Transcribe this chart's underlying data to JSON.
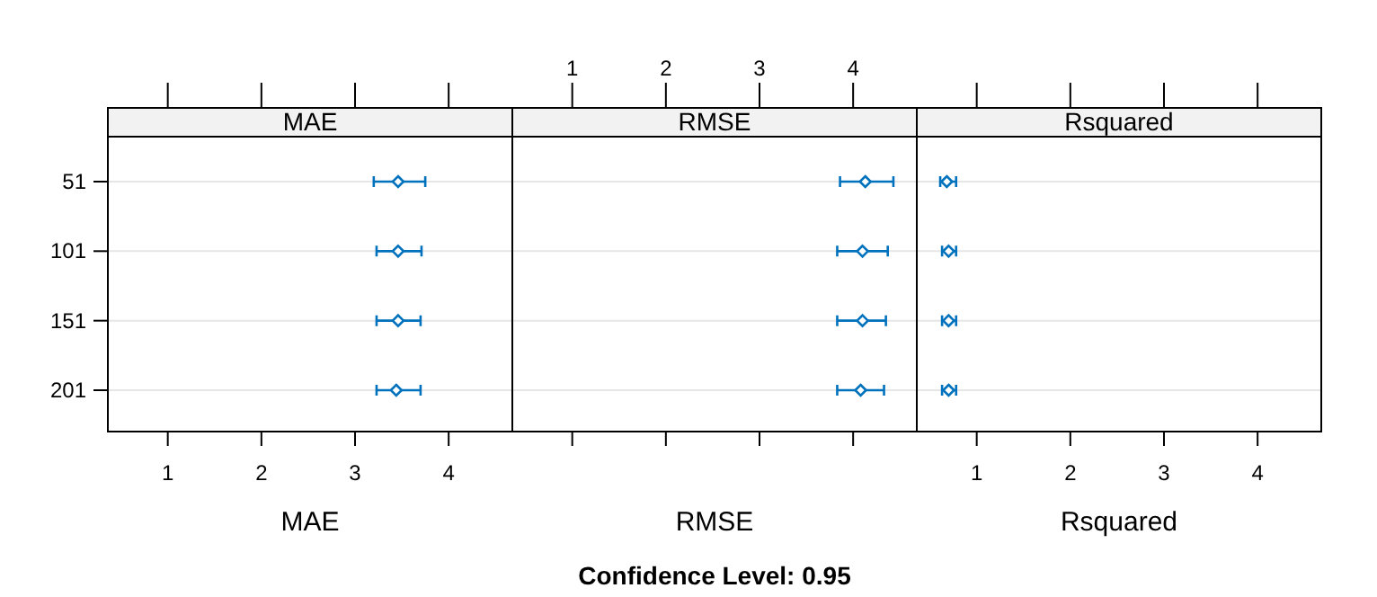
{
  "chart_data": [
    {
      "type": "scatter",
      "title": "MAE",
      "xlabel": "MAE",
      "orientation": "horizontal",
      "categories": [
        "51",
        "101",
        "151",
        "201"
      ],
      "xlim": [
        0.36,
        4.68
      ],
      "xticks": [
        1,
        2,
        3,
        4
      ],
      "grid": "y",
      "marker": "diamond",
      "series": [
        {
          "color": "#0072bd",
          "values": [
            3.46,
            3.46,
            3.46,
            3.44
          ],
          "errors": [
            [
              3.2,
              3.75
            ],
            [
              3.23,
              3.71
            ],
            [
              3.23,
              3.7
            ],
            [
              3.23,
              3.7
            ]
          ]
        }
      ]
    },
    {
      "type": "scatter",
      "title": "RMSE",
      "xlabel": "RMSE",
      "orientation": "horizontal",
      "categories": [
        "51",
        "101",
        "151",
        "201"
      ],
      "xlim": [
        0.36,
        4.68
      ],
      "xticks": [
        1,
        2,
        3,
        4
      ],
      "tick_labels": "x",
      "grid": "y",
      "marker": "diamond",
      "annotations": [
        "Confidence Level: 0.95"
      ],
      "series": [
        {
          "color": "#0072bd",
          "values": [
            4.13,
            4.1,
            4.1,
            4.08
          ],
          "errors": [
            [
              3.86,
              4.43
            ],
            [
              3.83,
              4.37
            ],
            [
              3.83,
              4.35
            ],
            [
              3.83,
              4.33
            ]
          ]
        }
      ]
    },
    {
      "type": "scatter",
      "title": "Rsquared",
      "xlabel": "Rsquared",
      "orientation": "horizontal",
      "categories": [
        "51",
        "101",
        "151",
        "201"
      ],
      "xlim": [
        0.36,
        4.68
      ],
      "xticks": [
        1,
        2,
        3,
        4
      ],
      "tick_labels": "x",
      "grid": "y",
      "marker": "diamond",
      "series": [
        {
          "color": "#0072bd",
          "values": [
            0.68,
            0.7,
            0.7,
            0.7
          ],
          "errors": [
            [
              0.61,
              0.78
            ],
            [
              0.63,
              0.78
            ],
            [
              0.63,
              0.78
            ],
            [
              0.63,
              0.78
            ]
          ]
        }
      ]
    }
  ]
}
